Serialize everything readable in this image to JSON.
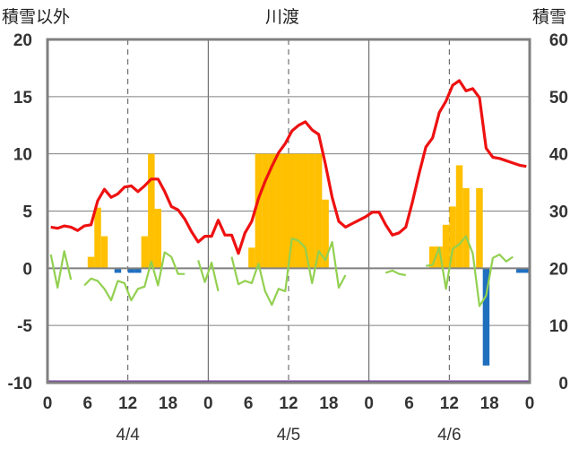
{
  "chart_data": {
    "type": "bar+line",
    "title": "川渡",
    "left_axis_label": "積雪以外",
    "right_axis_label": "積雪",
    "left_ylim": [
      -10,
      20
    ],
    "right_ylim": [
      0,
      60
    ],
    "left_ticks": [
      "20",
      "15",
      "10",
      "5",
      "0",
      "-5",
      "-10"
    ],
    "right_ticks": [
      "60",
      "50",
      "40",
      "30",
      "20",
      "10",
      "0"
    ],
    "x_ticks": [
      "0",
      "6",
      "12",
      "18",
      "0",
      "6",
      "12",
      "18",
      "0",
      "6",
      "12",
      "18",
      "0"
    ],
    "dates": [
      "4/4",
      "4/5",
      "4/6"
    ],
    "x_range_hours": [
      0,
      72
    ],
    "colors": {
      "red_line": "#ee1111",
      "green_line": "#92d050",
      "orange_bar": "#ffc000",
      "blue_bar": "#1f6fbf",
      "purple_line": "#7030a0",
      "frame": "#808080"
    },
    "red_series": [
      [
        0,
        3.6
      ],
      [
        1,
        3.5
      ],
      [
        2,
        3.7
      ],
      [
        3,
        3.6
      ],
      [
        4,
        3.3
      ],
      [
        5,
        3.7
      ],
      [
        6,
        3.8
      ],
      [
        7,
        5.9
      ],
      [
        8,
        6.9
      ],
      [
        9,
        6.2
      ],
      [
        10,
        6.5
      ],
      [
        11,
        7.1
      ],
      [
        12,
        7.2
      ],
      [
        13,
        6.7
      ],
      [
        14,
        7.2
      ],
      [
        15,
        7.8
      ],
      [
        16,
        7.8
      ],
      [
        17,
        6.7
      ],
      [
        18,
        5.4
      ],
      [
        19,
        5.1
      ],
      [
        20,
        4.3
      ],
      [
        21,
        3.2
      ],
      [
        22,
        2.3
      ],
      [
        23,
        2.8
      ],
      [
        24,
        2.8
      ],
      [
        25,
        4.2
      ],
      [
        26,
        2.9
      ],
      [
        27,
        2.9
      ],
      [
        28,
        1.3
      ],
      [
        29,
        3.1
      ],
      [
        30,
        4.1
      ],
      [
        31,
        6.1
      ],
      [
        32,
        7.6
      ],
      [
        33,
        8.9
      ],
      [
        34,
        10.1
      ],
      [
        35,
        10.9
      ],
      [
        36,
        12.0
      ],
      [
        37,
        12.5
      ],
      [
        38,
        12.8
      ],
      [
        39,
        12.1
      ],
      [
        40,
        11.7
      ],
      [
        41,
        9.1
      ],
      [
        42,
        6.2
      ],
      [
        43,
        4.1
      ],
      [
        44,
        3.6
      ],
      [
        45,
        3.9
      ],
      [
        46,
        4.2
      ],
      [
        47,
        4.5
      ],
      [
        48,
        4.9
      ],
      [
        49,
        4.9
      ],
      [
        50,
        3.8
      ],
      [
        51,
        2.9
      ],
      [
        52,
        3.1
      ],
      [
        53,
        3.6
      ],
      [
        54,
        5.8
      ],
      [
        55,
        8.3
      ],
      [
        56,
        10.6
      ],
      [
        57,
        11.4
      ],
      [
        58,
        13.6
      ],
      [
        59,
        14.6
      ],
      [
        60,
        16.0
      ],
      [
        61,
        16.4
      ],
      [
        62,
        15.5
      ],
      [
        63,
        15.7
      ],
      [
        64,
        14.9
      ],
      [
        65,
        10.5
      ],
      [
        66,
        9.7
      ],
      [
        67,
        9.6
      ],
      [
        68,
        9.4
      ],
      [
        69,
        9.2
      ],
      [
        70,
        9.0
      ],
      [
        71,
        8.9
      ]
    ],
    "green_series": [
      [
        [
          0,
          1.2
        ],
        [
          1,
          -1.7
        ],
        [
          2,
          1.5
        ],
        [
          3,
          -1.0
        ]
      ],
      [
        [
          5,
          -1.5
        ],
        [
          6,
          -0.9
        ],
        [
          7,
          -1.1
        ],
        [
          8,
          -1.8
        ],
        [
          9,
          -2.8
        ],
        [
          10,
          -1.1
        ],
        [
          11,
          -1.3
        ],
        [
          12,
          -2.8
        ],
        [
          13,
          -1.8
        ],
        [
          14,
          -1.6
        ],
        [
          15,
          0.6
        ],
        [
          16,
          -1.5
        ],
        [
          17,
          1.4
        ],
        [
          18,
          1.0
        ],
        [
          19,
          -0.5
        ],
        [
          20,
          -0.5
        ]
      ],
      [
        [
          22,
          0.7
        ],
        [
          23,
          -1.2
        ],
        [
          24,
          0.5
        ],
        [
          25,
          -2.0
        ]
      ],
      [
        [
          27,
          1.0
        ],
        [
          28,
          -1.4
        ],
        [
          29,
          -1.1
        ],
        [
          30,
          -1.3
        ],
        [
          31,
          0.4
        ],
        [
          32,
          -2.0
        ],
        [
          33,
          -3.2
        ],
        [
          34,
          -1.8
        ],
        [
          35,
          -2.0
        ],
        [
          36,
          2.6
        ],
        [
          37,
          2.4
        ],
        [
          38,
          1.8
        ],
        [
          39,
          -1.3
        ],
        [
          40,
          1.5
        ],
        [
          41,
          0.7
        ],
        [
          42,
          2.3
        ],
        [
          43,
          -1.7
        ],
        [
          44,
          -0.6
        ]
      ],
      [
        [
          50,
          -0.4
        ],
        [
          51,
          -0.2
        ],
        [
          52,
          -0.5
        ],
        [
          53,
          -0.6
        ]
      ],
      [
        [
          56,
          0.2
        ],
        [
          57,
          0.3
        ],
        [
          58,
          1.8
        ],
        [
          59,
          -1.8
        ],
        [
          60,
          1.7
        ],
        [
          61,
          2.1
        ],
        [
          62,
          2.8
        ],
        [
          63,
          1.3
        ],
        [
          64,
          -3.3
        ],
        [
          65,
          -2.4
        ],
        [
          66,
          0.9
        ],
        [
          67,
          1.2
        ],
        [
          68,
          0.6
        ],
        [
          69,
          1.0
        ]
      ]
    ],
    "orange_bars": [
      [
        6,
        1
      ],
      [
        7,
        5.3
      ],
      [
        8,
        2.8
      ],
      [
        14,
        2.8
      ],
      [
        15,
        10
      ],
      [
        16,
        5.2
      ],
      [
        30,
        1.8
      ],
      [
        31,
        10
      ],
      [
        32,
        10
      ],
      [
        33,
        10
      ],
      [
        34,
        10
      ],
      [
        35,
        10
      ],
      [
        36,
        10
      ],
      [
        37,
        10
      ],
      [
        38,
        10
      ],
      [
        39,
        10
      ],
      [
        40,
        10
      ],
      [
        41,
        6
      ],
      [
        57,
        1.9
      ],
      [
        58,
        1.9
      ],
      [
        59,
        3.8
      ],
      [
        60,
        5.4
      ],
      [
        61,
        9
      ],
      [
        62,
        7
      ],
      [
        64,
        7
      ]
    ],
    "blue_bars": [
      [
        10,
        -0.4
      ],
      [
        12,
        -0.4
      ],
      [
        13,
        -0.4
      ],
      [
        65,
        -8.5
      ],
      [
        70,
        -0.4
      ],
      [
        71,
        -0.4
      ]
    ],
    "purple_series": [
      [
        0,
        -10
      ],
      [
        72,
        -10
      ]
    ]
  }
}
